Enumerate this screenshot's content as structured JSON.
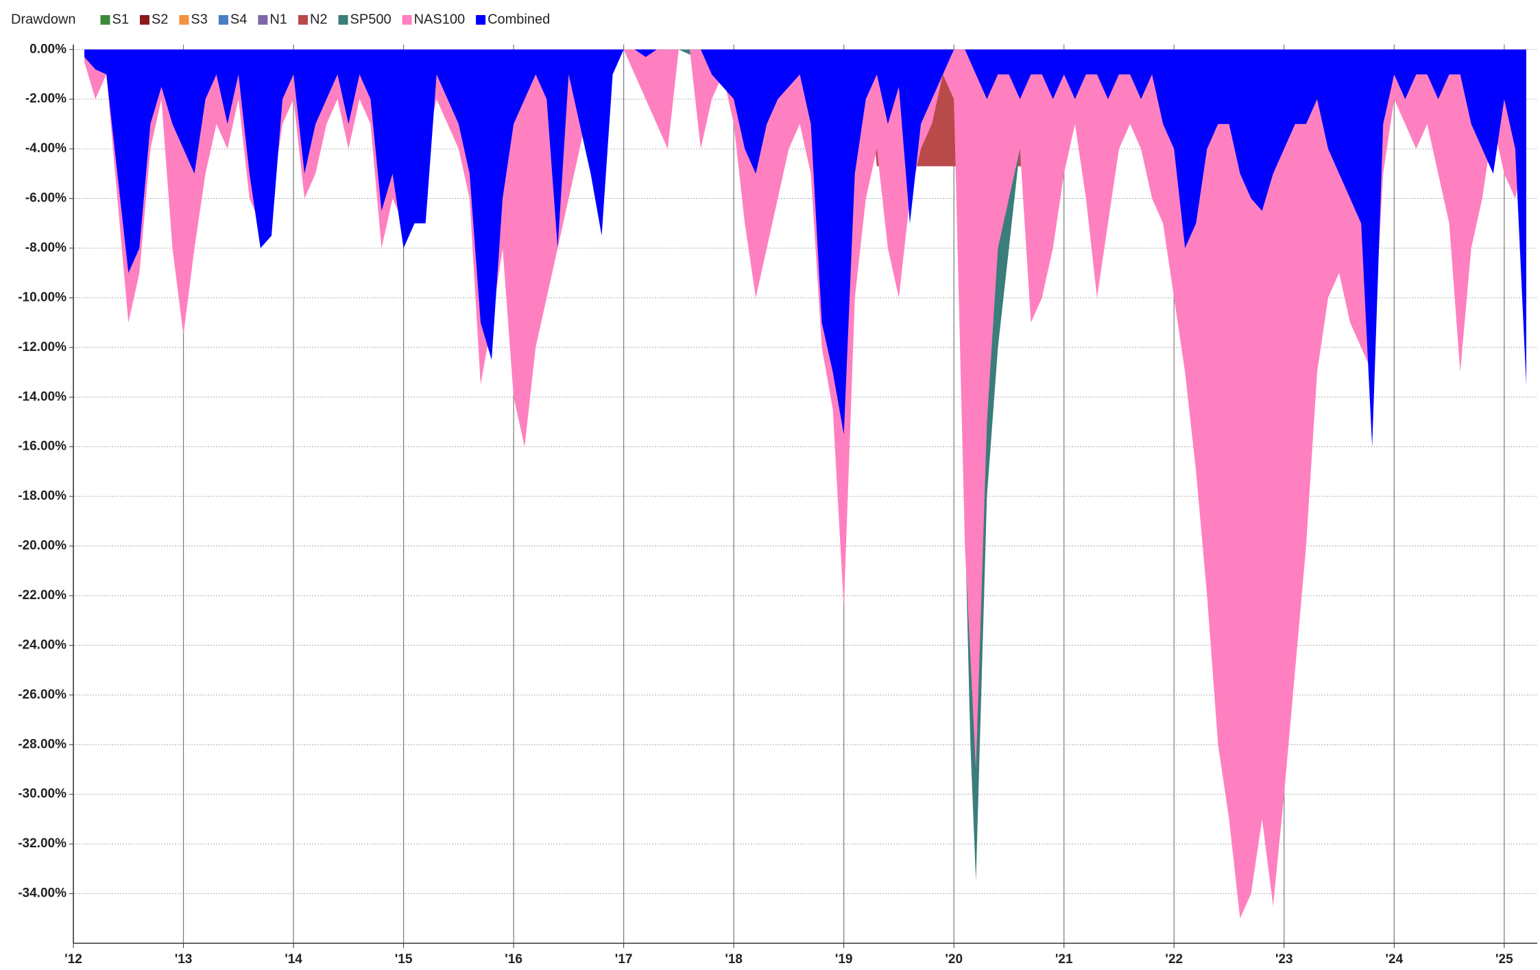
{
  "chart_data": {
    "type": "area",
    "title": "Drawdown",
    "xlim": [
      2012,
      2025.3
    ],
    "ylim": [
      -36,
      0.2
    ],
    "xticks": [
      {
        "value": 2012,
        "label": "'12"
      },
      {
        "value": 2013,
        "label": "'13"
      },
      {
        "value": 2014,
        "label": "'14"
      },
      {
        "value": 2015,
        "label": "'15"
      },
      {
        "value": 2016,
        "label": "'16"
      },
      {
        "value": 2017,
        "label": "'17"
      },
      {
        "value": 2018,
        "label": "'18"
      },
      {
        "value": 2019,
        "label": "'19"
      },
      {
        "value": 2020,
        "label": "'20"
      },
      {
        "value": 2021,
        "label": "'21"
      },
      {
        "value": 2022,
        "label": "'22"
      },
      {
        "value": 2023,
        "label": "'23"
      },
      {
        "value": 2024,
        "label": "'24"
      },
      {
        "value": 2025,
        "label": "'25"
      }
    ],
    "yticks": [
      {
        "value": 0,
        "label": "0.00%"
      },
      {
        "value": -2,
        "label": "-2.00%"
      },
      {
        "value": -4,
        "label": "-4.00%"
      },
      {
        "value": -6,
        "label": "-6.00%"
      },
      {
        "value": -8,
        "label": "-8.00%"
      },
      {
        "value": -10,
        "label": "-10.00%"
      },
      {
        "value": -12,
        "label": "-12.00%"
      },
      {
        "value": -14,
        "label": "-14.00%"
      },
      {
        "value": -16,
        "label": "-16.00%"
      },
      {
        "value": -18,
        "label": "-18.00%"
      },
      {
        "value": -20,
        "label": "-20.00%"
      },
      {
        "value": -22,
        "label": "-22.00%"
      },
      {
        "value": -24,
        "label": "-24.00%"
      },
      {
        "value": -26,
        "label": "-26.00%"
      },
      {
        "value": -28,
        "label": "-28.00%"
      },
      {
        "value": -30,
        "label": "-30.00%"
      },
      {
        "value": -32,
        "label": "-32.00%"
      },
      {
        "value": -34,
        "label": "-34.00%"
      }
    ],
    "grid": true,
    "legend": "top-left",
    "x": [
      2012.1,
      2012.2,
      2012.3,
      2012.4,
      2012.5,
      2012.6,
      2012.7,
      2012.8,
      2012.9,
      2013.0,
      2013.1,
      2013.2,
      2013.3,
      2013.4,
      2013.5,
      2013.6,
      2013.7,
      2013.8,
      2013.9,
      2014.0,
      2014.1,
      2014.2,
      2014.3,
      2014.4,
      2014.5,
      2014.6,
      2014.7,
      2014.8,
      2014.9,
      2015.0,
      2015.1,
      2015.2,
      2015.3,
      2015.4,
      2015.5,
      2015.6,
      2015.7,
      2015.8,
      2015.9,
      2016.0,
      2016.1,
      2016.2,
      2016.3,
      2016.4,
      2016.5,
      2016.6,
      2016.7,
      2016.8,
      2016.9,
      2017.0,
      2017.1,
      2017.2,
      2017.3,
      2017.4,
      2017.5,
      2017.6,
      2017.7,
      2017.8,
      2017.9,
      2018.0,
      2018.1,
      2018.2,
      2018.3,
      2018.4,
      2018.5,
      2018.6,
      2018.7,
      2018.8,
      2018.9,
      2019.0,
      2019.1,
      2019.2,
      2019.3,
      2019.4,
      2019.5,
      2019.6,
      2019.7,
      2019.8,
      2019.9,
      2020.0,
      2020.1,
      2020.2,
      2020.3,
      2020.4,
      2020.5,
      2020.6,
      2020.7,
      2020.8,
      2020.9,
      2021.0,
      2021.1,
      2021.2,
      2021.3,
      2021.4,
      2021.5,
      2021.6,
      2021.7,
      2021.8,
      2021.9,
      2022.0,
      2022.1,
      2022.2,
      2022.3,
      2022.4,
      2022.5,
      2022.6,
      2022.7,
      2022.8,
      2022.9,
      2023.0,
      2023.1,
      2023.2,
      2023.3,
      2023.4,
      2023.5,
      2023.6,
      2023.7,
      2023.8,
      2023.9,
      2024.0,
      2024.1,
      2024.2,
      2024.3,
      2024.4,
      2024.5,
      2024.6,
      2024.7,
      2024.8,
      2024.9,
      2025.0,
      2025.1,
      2025.2
    ],
    "series": [
      {
        "name": "S1",
        "color": "#3d8a3d",
        "x": [
          2012.1,
          2012.15,
          2012.2
        ],
        "values": [
          -0.3,
          -0.8,
          0
        ]
      },
      {
        "name": "S2",
        "color": "#8b1a1a",
        "x": [
          2023.9,
          2024.0,
          2024.1,
          2024.2,
          2024.4,
          2024.5
        ],
        "values": [
          -1.5,
          -2,
          -2.5,
          -1.8,
          -2.4,
          0
        ]
      },
      {
        "name": "S3",
        "color": "#f59242",
        "x": [
          2012.1,
          2025.2
        ],
        "values": [
          0,
          0
        ]
      },
      {
        "name": "S4",
        "color": "#4a7fc1",
        "x": [
          2012.1,
          2025.2
        ],
        "values": [
          0,
          0
        ]
      },
      {
        "name": "N1",
        "color": "#7e67a8",
        "x": [
          2012.1,
          2025.2
        ],
        "values": [
          0,
          0
        ]
      },
      {
        "name": "N2",
        "color": "#b84a4a",
        "x": [
          2018.4,
          2018.5,
          2018.7,
          2018.8,
          2019.2,
          2019.3,
          2020.7,
          2020.75
        ],
        "values": [
          0,
          -2,
          -2,
          0,
          0,
          -4.7,
          -4.7,
          0
        ]
      },
      {
        "name": "SP500",
        "color": "#3a7d7a",
        "x": [
          2017.1,
          2017.3,
          2017.5,
          2018.0,
          2018.2,
          2018.4,
          2018.6,
          2018.8,
          2020.0,
          2020.1,
          2020.15,
          2020.2,
          2020.3,
          2020.4,
          2020.5,
          2020.6,
          2020.7
        ],
        "values": [
          0,
          -1,
          0,
          -1,
          -6,
          -4,
          -3,
          -1,
          0,
          -19,
          -28,
          -33.5,
          -18,
          -12,
          -8,
          -4,
          0
        ]
      },
      {
        "name": "NAS100",
        "color": "#ff80c0",
        "values": [
          -0.5,
          -2,
          -1,
          -6,
          -11,
          -9,
          -4,
          -2,
          -8,
          -11.5,
          -8,
          -5,
          -3,
          -4,
          -2,
          -6,
          -7,
          -6,
          -3,
          -2,
          -6,
          -5,
          -3,
          -2,
          -4,
          -2,
          -3,
          -8,
          -6,
          -7,
          -5,
          -4,
          -2,
          -3,
          -4,
          -6,
          -13.5,
          -11,
          -8,
          -14,
          -16,
          -12,
          -10,
          -8,
          -6,
          -4,
          -2,
          -1,
          -0.5,
          0,
          -1,
          -2,
          -3,
          -4,
          0,
          0,
          -4,
          -2,
          -1,
          -3,
          -7,
          -10,
          -8,
          -6,
          -4,
          -3,
          -5,
          -12,
          -14.5,
          -22.5,
          -10,
          -6,
          -4,
          -8,
          -10,
          -6,
          -4,
          -3,
          -1,
          -2,
          -20,
          -29,
          -15,
          -8,
          -6,
          -4,
          -11,
          -10,
          -8,
          -5,
          -3,
          -6,
          -10,
          -7,
          -4,
          -3,
          -4,
          -6,
          -7,
          -10,
          -13,
          -17,
          -22,
          -28,
          -31,
          -35,
          -34,
          -31,
          -34.5,
          -30,
          -25,
          -20,
          -13,
          -10,
          -9,
          -11,
          -12,
          -13,
          -5,
          -2,
          -3,
          -4,
          -3,
          -5,
          -7,
          -13,
          -8,
          -6,
          -3,
          -5,
          -6,
          -4
        ]
      },
      {
        "name": "Combined",
        "color": "#0000ff",
        "values": [
          -0.3,
          -0.8,
          -1,
          -5,
          -9,
          -8,
          -3,
          -1.5,
          -3,
          -4,
          -5,
          -2,
          -1,
          -3,
          -1,
          -5,
          -8,
          -7.5,
          -2,
          -1,
          -5,
          -3,
          -2,
          -1,
          -3,
          -1,
          -2,
          -6.5,
          -5,
          -8,
          -7,
          -7,
          -1,
          -2,
          -3,
          -5,
          -11,
          -12.5,
          -6,
          -3,
          -2,
          -1,
          -2,
          -8,
          -1,
          -3,
          -5,
          -7.5,
          -1,
          0,
          0,
          -0.3,
          0,
          0,
          0,
          0,
          0,
          -1,
          -1.5,
          -2,
          -4,
          -5,
          -3,
          -2,
          -1.5,
          -1,
          -3,
          -11,
          -13,
          -15.5,
          -5,
          -2,
          -1,
          -3,
          -1.5,
          -7,
          -3,
          -2,
          -1,
          0,
          0,
          -1,
          -2,
          -1,
          -1,
          -2,
          -1,
          -1,
          -2,
          -1,
          -2,
          -1,
          -1,
          -2,
          -1,
          -1,
          -2,
          -1,
          -3,
          -4,
          -8,
          -7,
          -4,
          -3,
          -3,
          -5,
          -6,
          -6.5,
          -5,
          -4,
          -3,
          -3,
          -2,
          -4,
          -5,
          -6,
          -7,
          -16,
          -3,
          -1,
          -2,
          -1,
          -1,
          -2,
          -1,
          -1,
          -3,
          -4,
          -5,
          -2,
          -4,
          -13.5
        ]
      }
    ]
  }
}
